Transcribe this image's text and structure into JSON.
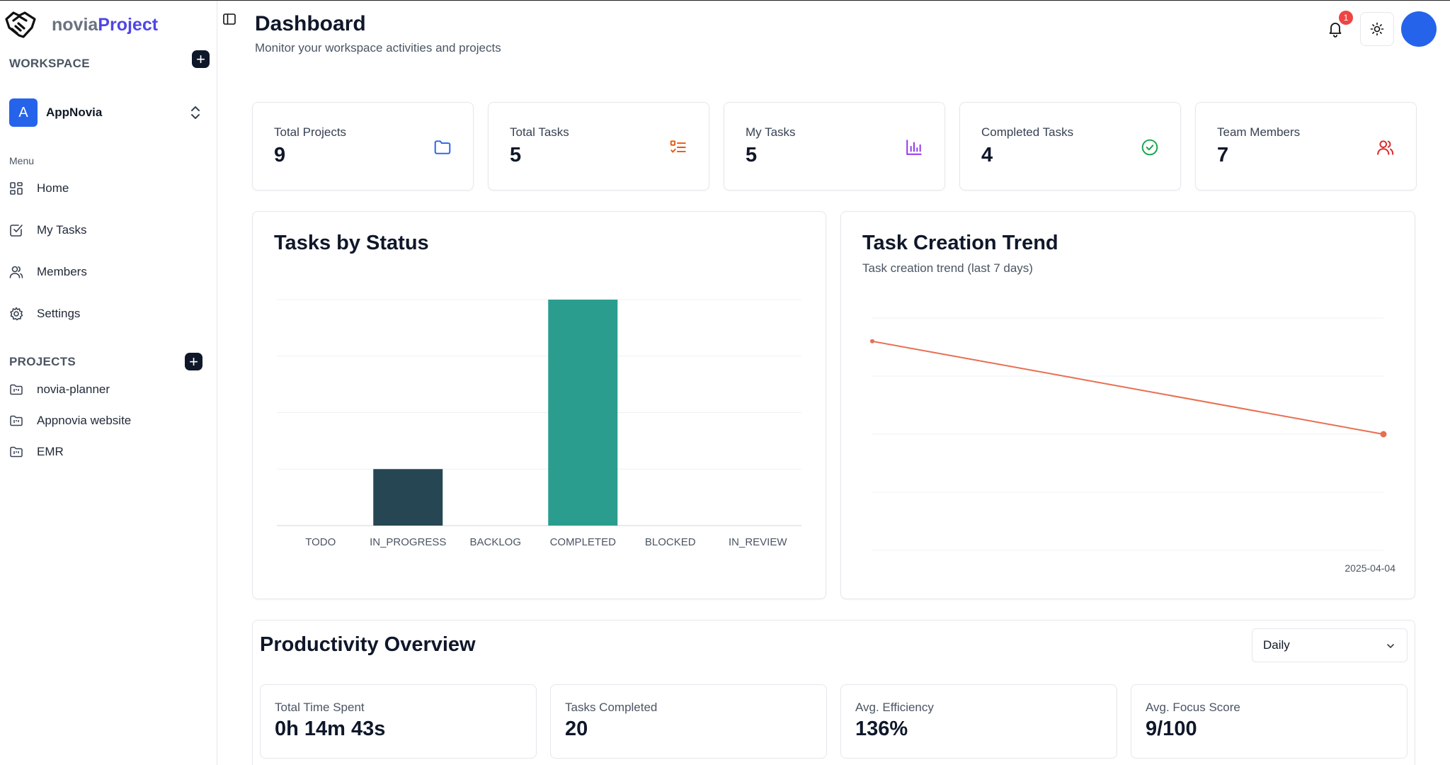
{
  "brand": {
    "prefix": "novia",
    "accent": "Project"
  },
  "sidebar": {
    "workspace_label": "WORKSPACE",
    "workspace": {
      "initial": "A",
      "name": "AppNovia"
    },
    "menu_label": "Menu",
    "nav": [
      {
        "label": "Home",
        "icon": "grid-icon"
      },
      {
        "label": "My Tasks",
        "icon": "checkbox-icon"
      },
      {
        "label": "Members",
        "icon": "users-icon"
      },
      {
        "label": "Settings",
        "icon": "gear-icon"
      }
    ],
    "projects_label": "PROJECTS",
    "projects": [
      "novia-planner",
      "Appnovia website",
      "EMR"
    ]
  },
  "header": {
    "title": "Dashboard",
    "subtitle": "Monitor your workspace activities and projects",
    "notification_count": "1"
  },
  "stats": [
    {
      "label": "Total Projects",
      "value": "9",
      "icon": "folder-icon",
      "color": "#2563eb"
    },
    {
      "label": "Total Tasks",
      "value": "5",
      "icon": "list-icon",
      "color": "#ea580c"
    },
    {
      "label": "My Tasks",
      "value": "5",
      "icon": "bar-chart-icon",
      "color": "#9333ea"
    },
    {
      "label": "Completed Tasks",
      "value": "4",
      "icon": "check-circle-icon",
      "color": "#16a34a"
    },
    {
      "label": "Team Members",
      "value": "7",
      "icon": "users-icon",
      "color": "#dc2626"
    }
  ],
  "chart_data": [
    {
      "type": "bar",
      "title": "Tasks by Status",
      "categories": [
        "TODO",
        "IN_PROGRESS",
        "BACKLOG",
        "COMPLETED",
        "BLOCKED",
        "IN_REVIEW"
      ],
      "values": [
        0,
        1,
        0,
        4,
        0,
        0
      ],
      "colors": [
        "#264653",
        "#264653",
        "#264653",
        "#2a9d8f",
        "#264653",
        "#264653"
      ],
      "ylim": [
        0,
        4
      ],
      "grid": true
    },
    {
      "type": "line",
      "title": "Task Creation Trend",
      "subtitle": "Task creation trend (last 7 days)",
      "x_tick_label": "2025-04-04",
      "series": [
        {
          "values": [
            3.6,
            2.0
          ],
          "color": "#e76f51"
        }
      ],
      "ylim": [
        0,
        4
      ],
      "grid": true
    }
  ],
  "productivity": {
    "title": "Productivity Overview",
    "period": "Daily",
    "metrics": [
      {
        "label": "Total Time Spent",
        "value": "0h 14m 43s"
      },
      {
        "label": "Tasks Completed",
        "value": "20"
      },
      {
        "label": "Avg. Efficiency",
        "value": "136%"
      },
      {
        "label": "Avg. Focus Score",
        "value": "9/100"
      }
    ]
  }
}
